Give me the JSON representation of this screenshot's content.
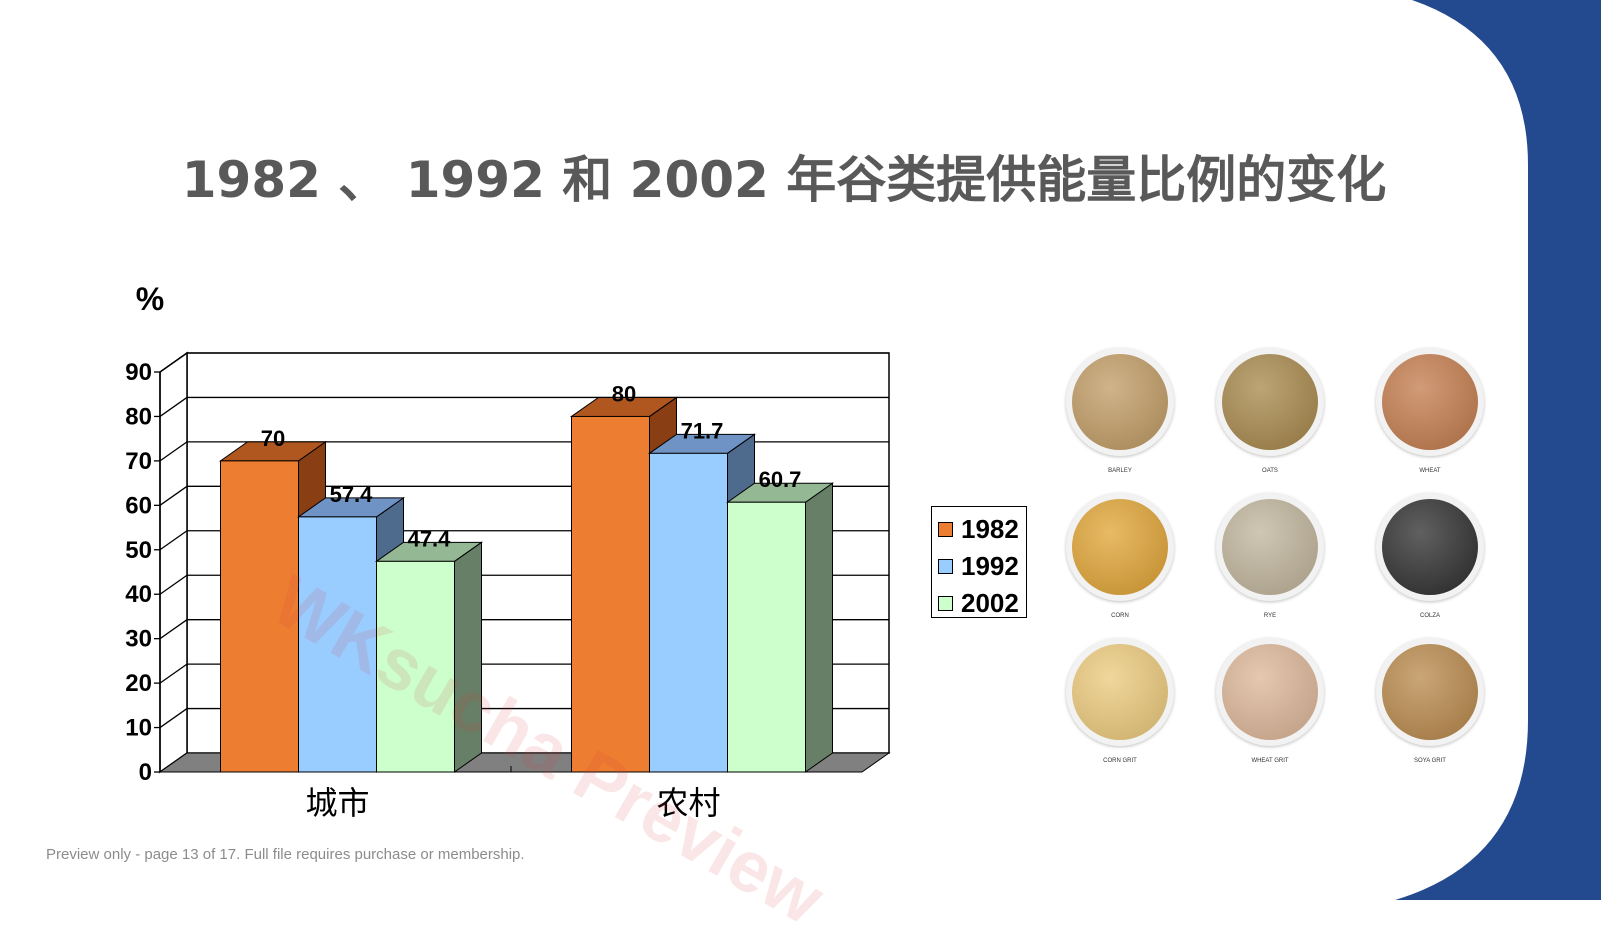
{
  "slide": {
    "title": "1982 、 1992  和 2002 年谷类提供能量比例的变化",
    "footer": "Preview only - page 13 of 17. Full file requires purchase or membership.",
    "watermark": "WKsucha Preview"
  },
  "colors": {
    "accent_blue": "#234a8f",
    "title_gray": "#595959",
    "s1982_front": "#ed7d31",
    "s1982_top": "#b0561f",
    "s1982_side": "#8a3e14",
    "s1992_front": "#99ccff",
    "s1992_top": "#6e93c4",
    "s1992_side": "#4e6a8c",
    "s2002_front": "#ccffcc",
    "s2002_top": "#94b894",
    "s2002_side": "#667f66",
    "floor": "#808080"
  },
  "chart_data": {
    "type": "bar",
    "title": "1982 、 1992  和 2002 年谷类提供能量比例的变化",
    "ylabel": "%",
    "xlabel": "",
    "categories": [
      "城市",
      "农村"
    ],
    "series": [
      {
        "name": "1982",
        "values": [
          70,
          80
        ]
      },
      {
        "name": "1992",
        "values": [
          57.4,
          71.7
        ]
      },
      {
        "name": "2002",
        "values": [
          47.4,
          60.7
        ]
      }
    ],
    "ylim": [
      0,
      90
    ],
    "yticks": [
      0,
      10,
      20,
      30,
      40,
      50,
      60,
      70,
      80,
      90
    ],
    "data_labels": [
      [
        "70",
        "80"
      ],
      [
        "57.4",
        "71.7"
      ],
      [
        "47.4",
        "60.7"
      ]
    ],
    "grid": true,
    "legend": "right",
    "style": "3d"
  },
  "grains": [
    {
      "label": "BARLEY",
      "color": "#c09a62"
    },
    {
      "label": "OATS",
      "color": "#a68648"
    },
    {
      "label": "WHEAT",
      "color": "#c27a4a"
    },
    {
      "label": "CORN",
      "color": "#e0a332"
    },
    {
      "label": "RYE",
      "color": "#bfb39a"
    },
    {
      "label": "COLZA",
      "color": "#2b2b2b"
    },
    {
      "label": "CORN GRIT",
      "color": "#ecc97a"
    },
    {
      "label": "WHEAT GRIT",
      "color": "#dcb596"
    },
    {
      "label": "SOYA GRIT",
      "color": "#b88749"
    }
  ]
}
